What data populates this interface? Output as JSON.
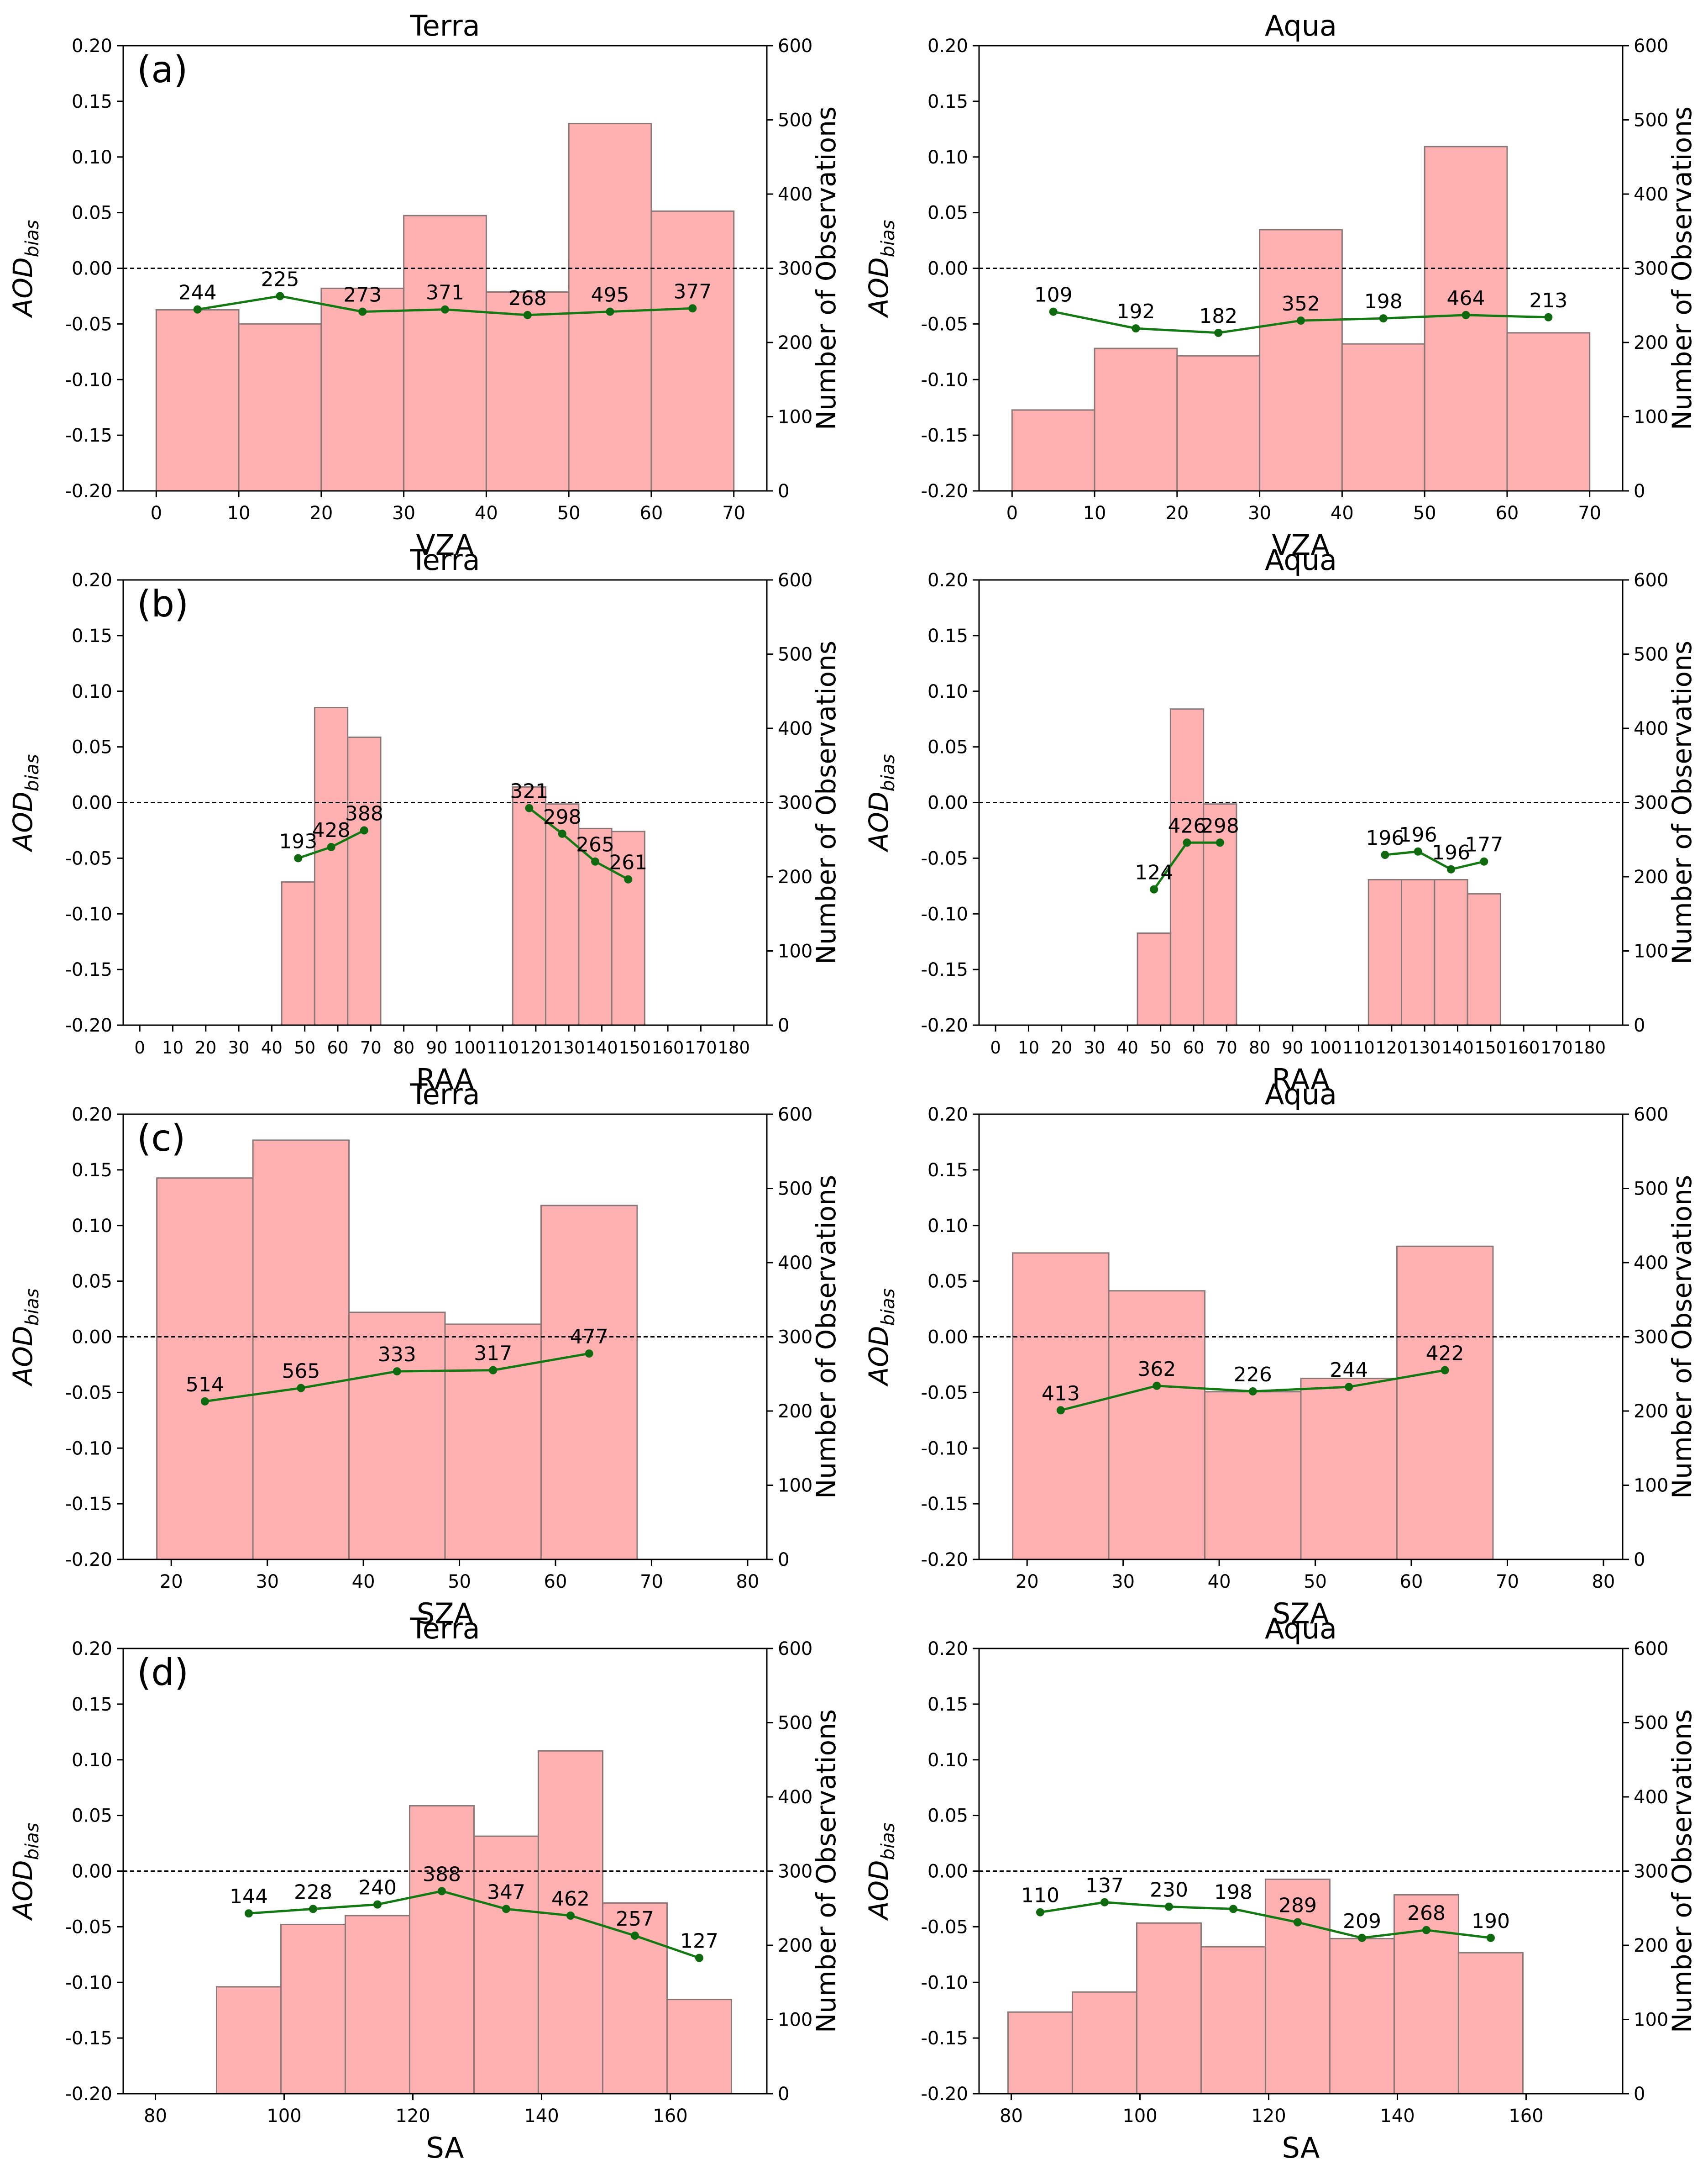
{
  "colors": {
    "bar_fill": "#ffb1b1",
    "bar_edge": "#8a7777",
    "line": "#137a13",
    "point": "#0f6a0f",
    "label": "#000000",
    "label_on_bar": "#6b0000",
    "axis": "#000000",
    "zero_line": "#000000"
  },
  "shared": {
    "ylabel_main": "AOD",
    "ylabel_sub": "bias",
    "ylabel_right": "Number of Observations",
    "left_ylim": [
      -0.2,
      0.2
    ],
    "left_yticks": [
      "-0.20",
      "-0.15",
      "-0.10",
      "-0.05",
      "0.00",
      "0.05",
      "0.10",
      "0.15",
      "0.20"
    ],
    "right_ylim": [
      0,
      600
    ],
    "right_yticks": [
      "0",
      "100",
      "200",
      "300",
      "400",
      "500",
      "600"
    ]
  },
  "chart_data": [
    {
      "id": "a-terra",
      "type": "bar+line",
      "row_label": "(a)",
      "title": "Terra",
      "xlabel": "VZA",
      "xlim": [
        -4,
        74
      ],
      "xticks": [
        0,
        10,
        20,
        30,
        40,
        50,
        60,
        70
      ],
      "bars": {
        "edges": [
          0,
          10,
          20,
          30,
          40,
          50,
          60,
          70
        ],
        "counts": [
          244,
          225,
          273,
          371,
          268,
          495,
          377
        ]
      },
      "line": {
        "x": [
          5,
          15,
          25,
          35,
          45,
          55,
          65
        ],
        "y": [
          -0.037,
          -0.025,
          -0.039,
          -0.037,
          -0.042,
          -0.039,
          -0.036
        ],
        "labels": [
          "244",
          "225",
          "273",
          "371",
          "268",
          "495",
          "377"
        ]
      }
    },
    {
      "id": "a-aqua",
      "type": "bar+line",
      "row_label": "",
      "title": "Aqua",
      "xlabel": "VZA",
      "xlim": [
        -4,
        74
      ],
      "xticks": [
        0,
        10,
        20,
        30,
        40,
        50,
        60,
        70
      ],
      "bars": {
        "edges": [
          0,
          10,
          20,
          30,
          40,
          50,
          60,
          70
        ],
        "counts": [
          109,
          192,
          182,
          352,
          198,
          464,
          213
        ]
      },
      "line": {
        "x": [
          5,
          15,
          25,
          35,
          45,
          55,
          65
        ],
        "y": [
          -0.039,
          -0.054,
          -0.058,
          -0.047,
          -0.045,
          -0.042,
          -0.044
        ],
        "labels": [
          "109",
          "192",
          "182",
          "352",
          "198",
          "464",
          "213"
        ]
      }
    },
    {
      "id": "b-terra",
      "type": "bar+line",
      "row_label": "(b)",
      "title": "Terra",
      "xlabel": "RAA",
      "xlim": [
        -5,
        190
      ],
      "xticks": [
        0,
        10,
        20,
        30,
        40,
        50,
        60,
        70,
        80,
        90,
        100,
        110,
        120,
        130,
        140,
        150,
        160,
        170,
        180
      ],
      "bars": {
        "edges": [
          43,
          53,
          63,
          73,
          113,
          123,
          133,
          143,
          153
        ],
        "counts": [
          193,
          428,
          388,
          0,
          321,
          298,
          265,
          261
        ]
      },
      "line": {
        "segments": [
          {
            "x": [
              48,
              58,
              68
            ],
            "y": [
              -0.05,
              -0.04,
              -0.025
            ],
            "labels": [
              "193",
              "428",
              "388"
            ]
          },
          {
            "x": [
              118,
              128,
              138,
              148
            ],
            "y": [
              -0.005,
              -0.028,
              -0.053,
              -0.069
            ],
            "labels": [
              "321",
              "298",
              "265",
              "261"
            ]
          }
        ]
      }
    },
    {
      "id": "b-aqua",
      "type": "bar+line",
      "row_label": "",
      "title": "Aqua",
      "xlabel": "RAA",
      "xlim": [
        -5,
        190
      ],
      "xticks": [
        0,
        10,
        20,
        30,
        40,
        50,
        60,
        70,
        80,
        90,
        100,
        110,
        120,
        130,
        140,
        150,
        160,
        170,
        180
      ],
      "bars": {
        "edges": [
          43,
          53,
          63,
          73,
          113,
          123,
          133,
          143,
          153
        ],
        "counts": [
          124,
          426,
          298,
          0,
          196,
          196,
          196,
          177
        ]
      },
      "line": {
        "segments": [
          {
            "x": [
              48,
              58,
              68
            ],
            "y": [
              -0.078,
              -0.036,
              -0.036
            ],
            "labels": [
              "124",
              "426",
              "298"
            ]
          },
          {
            "x": [
              118,
              128,
              138,
              148
            ],
            "y": [
              -0.047,
              -0.044,
              -0.06,
              -0.053
            ],
            "labels": [
              "196",
              "196",
              "196",
              "177"
            ]
          }
        ]
      }
    },
    {
      "id": "c-terra",
      "type": "bar+line",
      "row_label": "(c)",
      "title": "Terra",
      "xlabel": "SZA",
      "xlim": [
        15,
        82
      ],
      "xticks": [
        20,
        30,
        40,
        50,
        60,
        70,
        80
      ],
      "bars": {
        "edges": [
          18.5,
          28.5,
          38.5,
          48.5,
          58.5,
          68.5
        ],
        "counts": [
          514,
          565,
          333,
          317,
          477
        ]
      },
      "line": {
        "x": [
          23.5,
          33.5,
          43.5,
          53.5,
          63.5
        ],
        "y": [
          -0.058,
          -0.046,
          -0.031,
          -0.03,
          -0.015
        ],
        "labels": [
          "514",
          "565",
          "333",
          "317",
          "477"
        ]
      }
    },
    {
      "id": "c-aqua",
      "type": "bar+line",
      "row_label": "",
      "title": "Aqua",
      "xlabel": "SZA",
      "xlim": [
        15,
        82
      ],
      "xticks": [
        20,
        30,
        40,
        50,
        60,
        70,
        80
      ],
      "bars": {
        "edges": [
          18.5,
          28.5,
          38.5,
          48.5,
          58.5,
          68.5
        ],
        "counts": [
          413,
          362,
          226,
          244,
          422
        ]
      },
      "line": {
        "x": [
          23.5,
          33.5,
          43.5,
          53.5,
          63.5
        ],
        "y": [
          -0.066,
          -0.044,
          -0.049,
          -0.045,
          -0.03
        ],
        "labels": [
          "413",
          "362",
          "226",
          "244",
          "422"
        ]
      }
    },
    {
      "id": "d-terra",
      "type": "bar+line",
      "row_label": "(d)",
      "title": "Terra",
      "xlabel": "SA",
      "xlim": [
        75,
        175
      ],
      "xticks": [
        80,
        100,
        120,
        140,
        160
      ],
      "bars": {
        "edges": [
          89.5,
          99.5,
          109.5,
          119.5,
          129.5,
          139.5,
          149.5,
          159.5,
          169.5
        ],
        "counts": [
          144,
          228,
          240,
          388,
          347,
          462,
          257,
          127
        ]
      },
      "line": {
        "x": [
          94.5,
          104.5,
          114.5,
          124.5,
          134.5,
          144.5,
          154.5,
          164.5
        ],
        "y": [
          -0.038,
          -0.034,
          -0.03,
          -0.018,
          -0.034,
          -0.04,
          -0.058,
          -0.078
        ],
        "labels": [
          "144",
          "228",
          "240",
          "388",
          "347",
          "462",
          "257",
          "127"
        ]
      }
    },
    {
      "id": "d-aqua",
      "type": "bar+line",
      "row_label": "",
      "title": "Aqua",
      "xlabel": "SA",
      "xlim": [
        75,
        175
      ],
      "xticks": [
        80,
        100,
        120,
        140,
        160
      ],
      "bars": {
        "edges": [
          79.5,
          89.5,
          99.5,
          109.5,
          119.5,
          129.5,
          139.5,
          149.5,
          159.5
        ],
        "counts": [
          110,
          137,
          230,
          198,
          289,
          209,
          268,
          190
        ]
      },
      "line": {
        "x": [
          84.5,
          94.5,
          104.5,
          114.5,
          124.5,
          134.5,
          144.5,
          154.5
        ],
        "y": [
          -0.037,
          -0.028,
          -0.032,
          -0.034,
          -0.046,
          -0.06,
          -0.053,
          -0.06
        ],
        "labels": [
          "110",
          "137",
          "230",
          "198",
          "289",
          "209",
          "268",
          "190"
        ]
      }
    }
  ]
}
